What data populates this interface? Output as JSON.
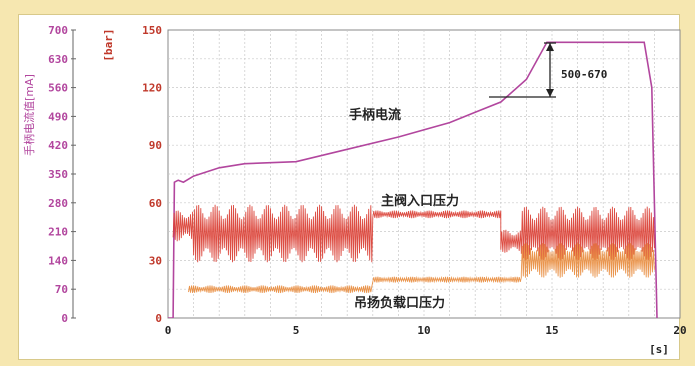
{
  "chart_data": {
    "type": "line",
    "title": "",
    "xlabel": "[s]",
    "ylabel_left": "手柄电流值[mA]",
    "ylabel_right": "[bar]",
    "x_ticks": [
      "0",
      "5",
      "10",
      "15",
      "20"
    ],
    "xlim": [
      0,
      20
    ],
    "y_left_ticks": [
      "0",
      "70",
      "140",
      "210",
      "280",
      "350",
      "420",
      "490",
      "560",
      "630",
      "700"
    ],
    "ylim_left": [
      0,
      700
    ],
    "y_right_ticks": [
      "0",
      "30",
      "60",
      "90",
      "120",
      "150"
    ],
    "ylim_right": [
      0,
      150
    ],
    "grid": true,
    "series": [
      {
        "name": "手柄电流",
        "axis": "left",
        "color": "#b2469e",
        "points": [
          [
            0,
            0
          ],
          [
            0.2,
            0
          ],
          [
            0.25,
            330
          ],
          [
            0.4,
            335
          ],
          [
            0.6,
            330
          ],
          [
            1,
            345
          ],
          [
            2,
            365
          ],
          [
            3,
            375
          ],
          [
            5,
            380
          ],
          [
            7,
            410
          ],
          [
            9,
            440
          ],
          [
            11,
            475
          ],
          [
            12,
            500
          ],
          [
            13,
            525
          ],
          [
            14,
            580
          ],
          [
            14.8,
            670
          ],
          [
            18.6,
            670
          ],
          [
            18.9,
            560
          ],
          [
            19.1,
            0
          ]
        ]
      },
      {
        "name": "主阀入口压力",
        "axis": "right",
        "color": "#d93a2f",
        "style": "oscillating",
        "segments": [
          {
            "x": [
              0.2,
              1.0
            ],
            "center": 48,
            "amp": 8
          },
          {
            "x": [
              1.0,
              8.0
            ],
            "center": 44,
            "amp": 15
          },
          {
            "x": [
              8.0,
              13.0
            ],
            "center": 54,
            "amp": 2
          },
          {
            "x": [
              13.0,
              13.8
            ],
            "center": 40,
            "amp": 6
          },
          {
            "x": [
              13.8,
              19.0
            ],
            "center": 44,
            "amp": 14
          }
        ]
      },
      {
        "name": "吊扬负载口压力",
        "axis": "right",
        "color": "#e88a3a",
        "style": "oscillating",
        "segments": [
          {
            "x": [
              0.8,
              8.0
            ],
            "center": 15,
            "amp": 2
          },
          {
            "x": [
              8.0,
              13.8
            ],
            "center": 20,
            "amp": 1.5
          },
          {
            "x": [
              13.8,
              19.0
            ],
            "center": 30,
            "amp": 9
          }
        ]
      }
    ],
    "annotations": [
      {
        "text": "手柄电流",
        "target": "series-1"
      },
      {
        "text": "主阀入口压力",
        "target": "series-2"
      },
      {
        "text": "吊扬负载口压力",
        "target": "series-3"
      },
      {
        "text": "500-670",
        "range_left_axis": [
          500,
          670
        ]
      }
    ]
  }
}
